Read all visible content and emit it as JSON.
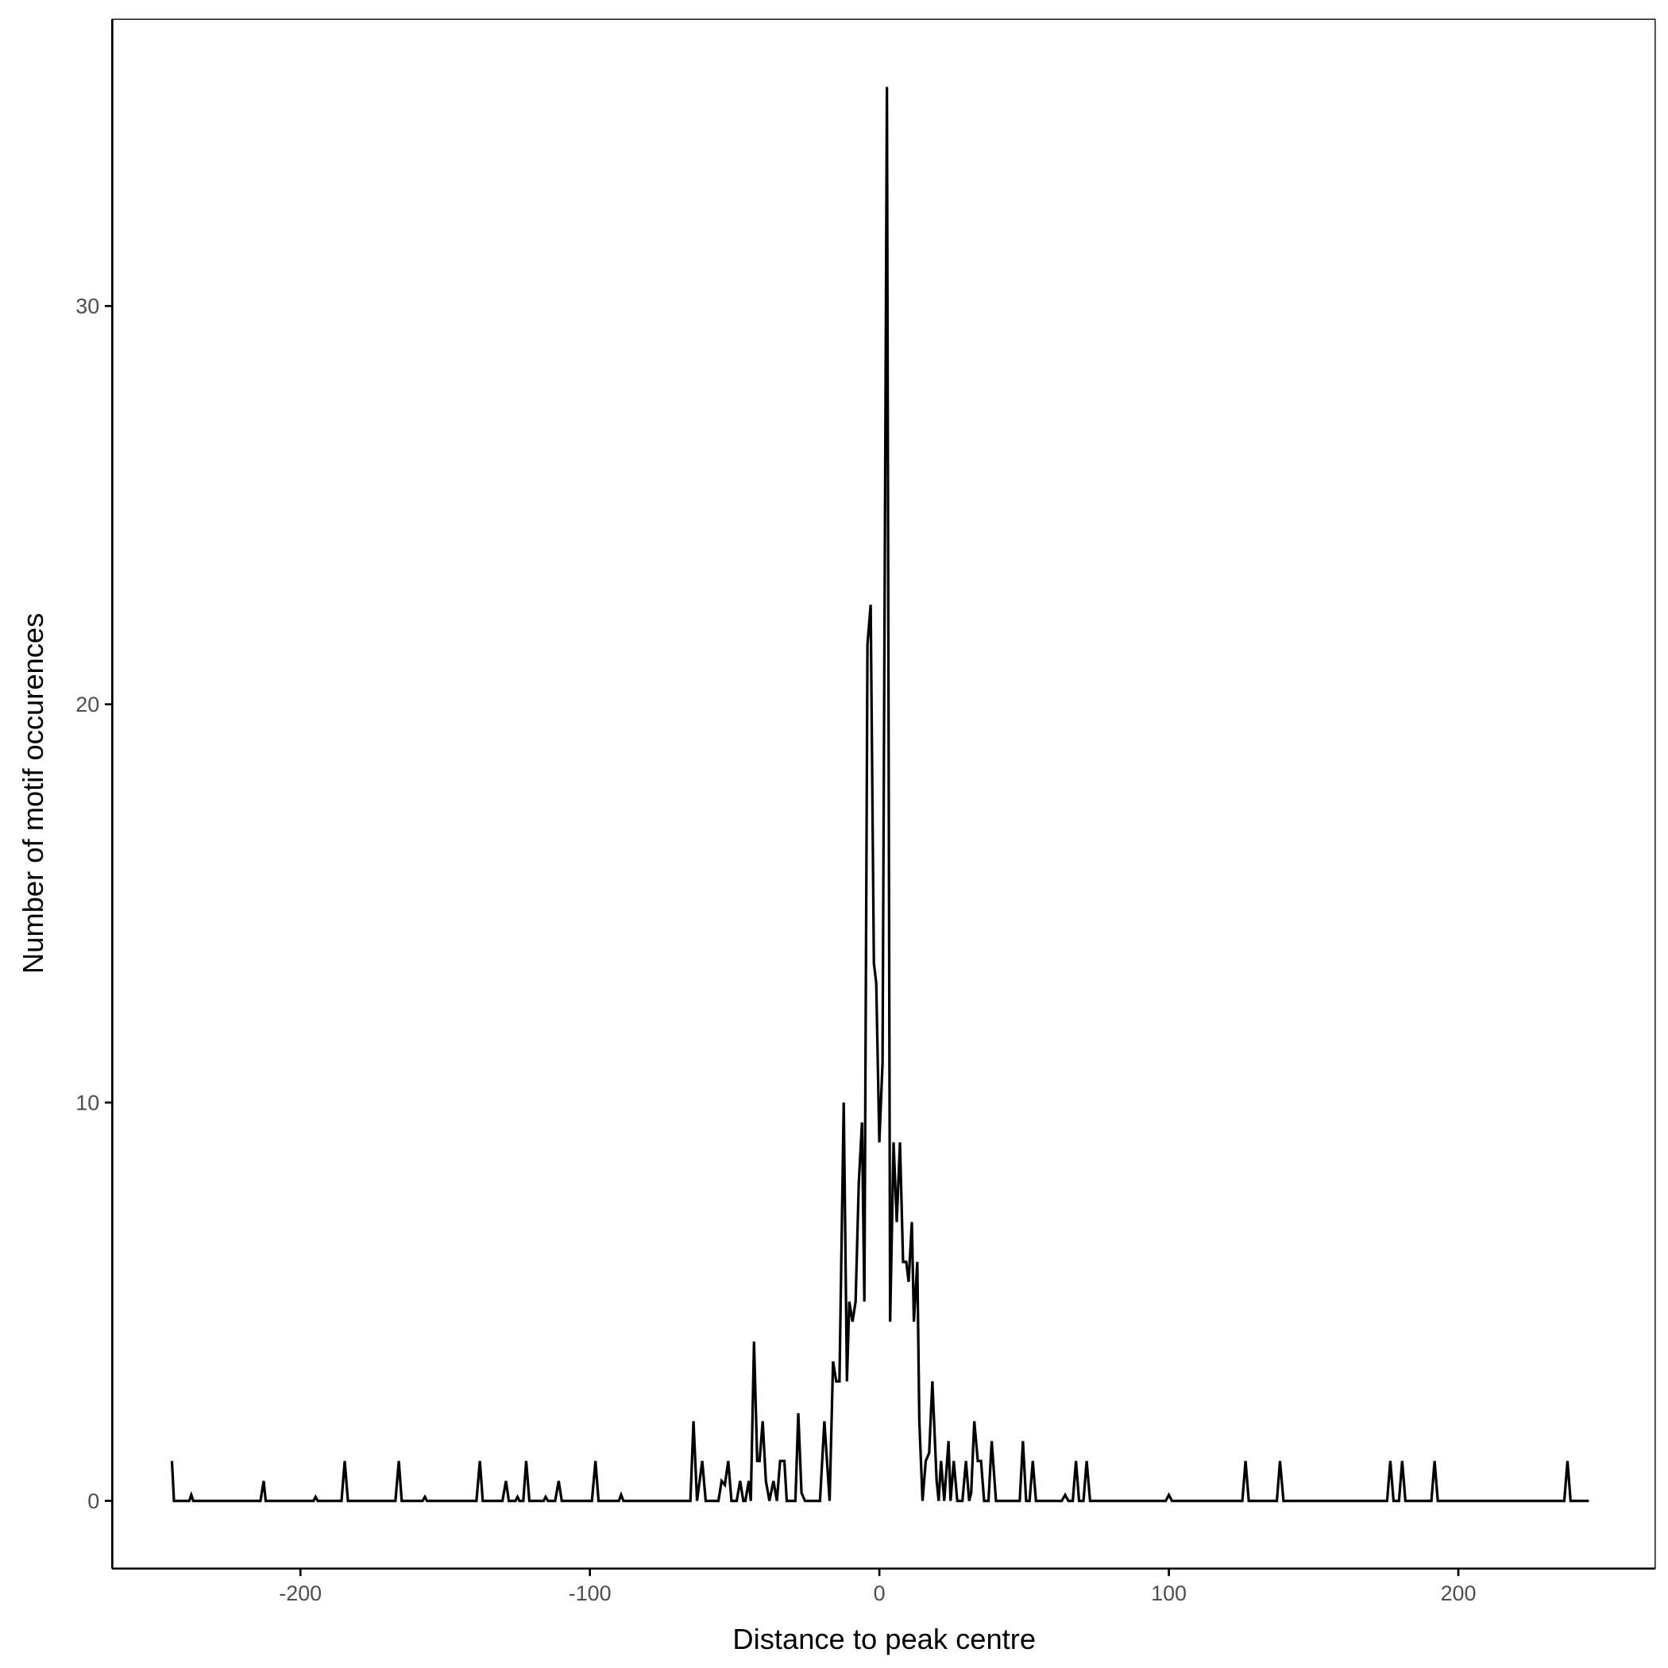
{
  "chart_data": {
    "type": "line",
    "title": "",
    "xlabel": "Distance to peak centre",
    "ylabel": "Number of motif occurences",
    "xlim": [
      -265,
      268
    ],
    "ylim": [
      -1.7,
      37.2
    ],
    "x_ticks": [
      -200,
      -100,
      0,
      100,
      200
    ],
    "x_tick_labels": [
      "-200",
      "-100",
      "0",
      "100",
      "200"
    ],
    "y_ticks": [
      0,
      10,
      20,
      30
    ],
    "y_tick_labels": [
      "0",
      "10",
      "20",
      "30"
    ],
    "grid": false,
    "line_color": "#000000",
    "series": [
      {
        "x": [
          -244.4,
          -243.7,
          -238.4,
          -237.7,
          -237,
          -213.8,
          -212.7,
          -212,
          -195.5,
          -194.8,
          -194,
          -185.8,
          -184.7,
          -183.6,
          -167.2,
          -166,
          -165,
          -157.8,
          -157,
          -156.3,
          -139.2,
          -138,
          -137,
          -130.2,
          -129,
          -128,
          -125.7,
          -125,
          -124.3,
          -123,
          -122,
          -120.9,
          -116,
          -115.3,
          -114.5,
          -112,
          -110.8,
          -109.7,
          -99.3,
          -98.1,
          -97,
          -90,
          -89.2,
          -88.4,
          -65.3,
          -64.2,
          -63,
          -61.2,
          -60,
          -55.6,
          -54.5,
          -53.4,
          -52.2,
          -51.1,
          -49.3,
          -48.1,
          -47,
          -46.3,
          -45.1,
          -44.4,
          -43.3,
          -42.2,
          -41.4,
          -40.3,
          -39.2,
          -38,
          -36.6,
          -35.4,
          -34.3,
          -32.8,
          -32,
          -29,
          -28,
          -26.9,
          -25.7,
          -20.5,
          -19,
          -17.2,
          -16,
          -14.9,
          -13.8,
          -12.3,
          -11.2,
          -10.4,
          -9.3,
          -8.2,
          -7.1,
          -6,
          -5.2,
          -4.1,
          -3,
          -1.9,
          -1.1,
          0,
          1.1,
          2.6,
          3.7,
          4.9,
          6,
          7.1,
          8.2,
          9.3,
          10.1,
          11.2,
          11.9,
          13.1,
          13.8,
          14.9,
          16,
          17.2,
          18.3,
          19.8,
          20.5,
          21.3,
          22.4,
          23.9,
          24.6,
          25.7,
          26.9,
          28.7,
          29.9,
          31,
          31.7,
          32.8,
          34,
          35.1,
          36.2,
          37.7,
          38.8,
          40.3,
          48.5,
          49.6,
          50.7,
          51.9,
          53,
          54.1,
          63,
          64.2,
          65.3,
          66.8,
          67.9,
          69,
          70.5,
          71.6,
          72.8,
          98.9,
          100,
          101.1,
          125.4,
          126.5,
          127.6,
          137.3,
          138.4,
          139.6,
          175.4,
          176.5,
          177.6,
          179.5,
          180.6,
          181.7,
          190.7,
          191.8,
          192.9,
          236.6,
          237.7,
          238.8,
          245.1
        ],
        "y": [
          1,
          0,
          0,
          0.15,
          0,
          0,
          0.5,
          0,
          0,
          0.1,
          0,
          0,
          1,
          0,
          0,
          1,
          0,
          0,
          0.1,
          0,
          0,
          1,
          0,
          0,
          0.5,
          0,
          0,
          0.1,
          0,
          0,
          1,
          0,
          0,
          0.1,
          0,
          0,
          0.5,
          0,
          0,
          1,
          0,
          0,
          0.15,
          0,
          0,
          2,
          0,
          1,
          0,
          0,
          0.5,
          0.4,
          1,
          0,
          0,
          0.5,
          0,
          0,
          0.5,
          0,
          4,
          1,
          1,
          2,
          0.5,
          0,
          0.5,
          0,
          1,
          1,
          0,
          0,
          2.2,
          0.2,
          0,
          0,
          2,
          0,
          3.5,
          3,
          3,
          10,
          3,
          5,
          4.5,
          5,
          8,
          9.5,
          5,
          21.5,
          22.5,
          13.5,
          13,
          9,
          11,
          35.5,
          4.5,
          9,
          7,
          9,
          6,
          6,
          5.5,
          7,
          4.5,
          6,
          2,
          0,
          1,
          1.2,
          3,
          0.5,
          0,
          1,
          0,
          1.5,
          0,
          1,
          0,
          0,
          1,
          0,
          0.2,
          2,
          1,
          1,
          0,
          0,
          1.5,
          0,
          0,
          1.5,
          0,
          0,
          1,
          0,
          0,
          0.15,
          0,
          0,
          1,
          0,
          0,
          1,
          0,
          0,
          0.15,
          0,
          0,
          1,
          0,
          0,
          1,
          0,
          0,
          1,
          0,
          0,
          1,
          0,
          0,
          1,
          0,
          0,
          1,
          0,
          0
        ]
      }
    ]
  }
}
